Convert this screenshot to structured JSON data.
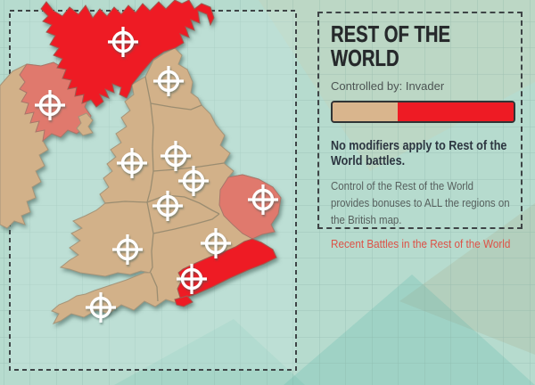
{
  "panel": {
    "title": "REST OF THE WORLD",
    "controlled_by_label": "Controlled by:",
    "controlled_by_value": "Invader",
    "control_bar": {
      "defender_percent": 36,
      "invader_percent": 64,
      "defender_color": "#d9b58d",
      "invader_color": "#ee1b24"
    },
    "modifier_note": "No modifiers apply to Rest of the World battles.",
    "description": "Control of the Rest of the World provides bonuses to ALL the regions on the British map.",
    "recent_battles_link": "Recent Battles in the Rest of the World"
  },
  "map": {
    "target_icon_count": 12,
    "colors": {
      "invader_red": "#ee1b24",
      "neutral_tan": "#d2b189",
      "contested_salmon": "#e0796d",
      "sea_mint": "#b6dbce",
      "grid_line": "#7fa89c",
      "dashed_border": "#3e4446"
    }
  }
}
